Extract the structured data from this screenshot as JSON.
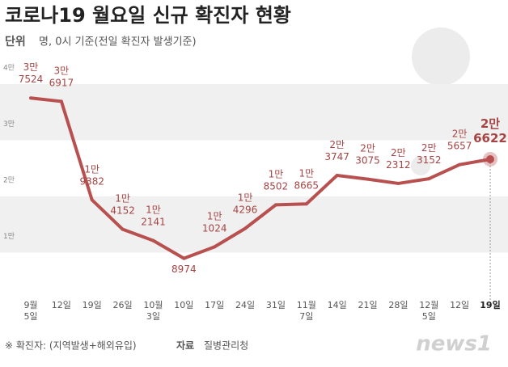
{
  "title": "코로나19 월요일 신규 확진자 현황",
  "unit_label": "단위",
  "unit_text": "명, 0시 기준(전일 확진자 발생기준)",
  "footnote": "※ 확진자: (지역발생+해외유입)",
  "source_label": "자료",
  "source": "질병관리청",
  "logo": "news1",
  "chart_data": {
    "type": "line",
    "categories": [
      "9월 5일",
      "12일",
      "19일",
      "26일",
      "10월 3일",
      "10일",
      "17일",
      "24일",
      "31일",
      "11월 7일",
      "14일",
      "21일",
      "28일",
      "12월 5일",
      "12일",
      "19일"
    ],
    "series": [
      {
        "name": "신규 확진자",
        "color": "#b8504f",
        "values": [
          37524,
          36917,
          19382,
          14152,
          12141,
          8974,
          11024,
          14296,
          18502,
          18665,
          23747,
          23075,
          22312,
          23152,
          25657,
          26622
        ],
        "value_labels": [
          "3만 7524",
          "3만 6917",
          "1만 9382",
          "1만 4152",
          "1만 2141",
          "8974",
          "1만 1024",
          "1만 4296",
          "1만 8502",
          "1만 8665",
          "2만 3747",
          "2만 3075",
          "2만 2312",
          "2만 3152",
          "2만 5657",
          "2만 6622"
        ]
      }
    ],
    "ylim": [
      0,
      40000
    ],
    "yticks": [
      {
        "value": 10000,
        "label": "1만"
      },
      {
        "value": 20000,
        "label": "2만"
      },
      {
        "value": 30000,
        "label": "3만"
      },
      {
        "value": 40000,
        "label": "4만"
      }
    ],
    "bands": true
  }
}
